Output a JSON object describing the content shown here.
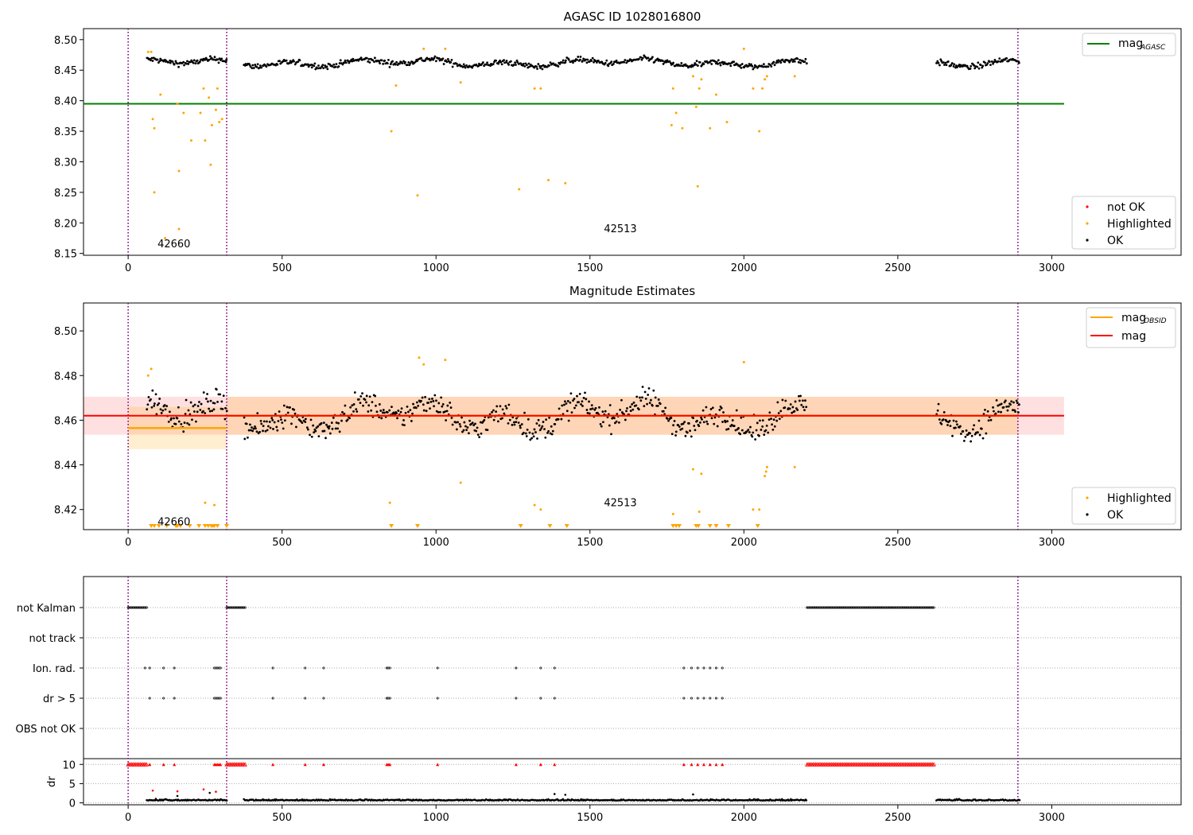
{
  "chart_data": [
    {
      "type": "scatter",
      "title": "AGASC ID 1028016800",
      "xlim": [
        -145,
        3420
      ],
      "ylim": [
        8.147,
        8.518
      ],
      "x_ticks": [
        "0",
        "500",
        "1000",
        "1500",
        "2000",
        "2500",
        "3000"
      ],
      "y_ticks": [
        "8.15",
        "8.20",
        "8.25",
        "8.30",
        "8.35",
        "8.40",
        "8.45",
        "8.50"
      ],
      "reference_line": {
        "label": "mag",
        "subscript": "AGASC",
        "value": 8.395,
        "x_range": [
          -145,
          3040
        ],
        "color": "#008000"
      },
      "obsid_boundaries": [
        0,
        320,
        2890
      ],
      "obsid_labels": [
        {
          "text": "42660",
          "x": 160,
          "y": 8.16
        },
        {
          "text": "42513",
          "x": 1610,
          "y": 8.185
        }
      ],
      "series": [
        {
          "name": "not OK",
          "color": "#ff0000",
          "values": []
        },
        {
          "name": "Highlighted",
          "color": "#ffa500",
          "points": [
            [
              65,
              8.48
            ],
            [
              75,
              8.48
            ],
            [
              80,
              8.37
            ],
            [
              85,
              8.355
            ],
            [
              85,
              8.25
            ],
            [
              105,
              8.41
            ],
            [
              120,
              8.175
            ],
            [
              160,
              8.395
            ],
            [
              165,
              8.285
            ],
            [
              165,
              8.19
            ],
            [
              180,
              8.38
            ],
            [
              205,
              8.335
            ],
            [
              235,
              8.38
            ],
            [
              245,
              8.42
            ],
            [
              250,
              8.335
            ],
            [
              262,
              8.405
            ],
            [
              268,
              8.295
            ],
            [
              272,
              8.36
            ],
            [
              285,
              8.385
            ],
            [
              290,
              8.42
            ],
            [
              296,
              8.365
            ],
            [
              305,
              8.37
            ],
            [
              855,
              8.35
            ],
            [
              870,
              8.425
            ],
            [
              940,
              8.245
            ],
            [
              960,
              8.485
            ],
            [
              1030,
              8.485
            ],
            [
              1080,
              8.43
            ],
            [
              1270,
              8.255
            ],
            [
              1320,
              8.42
            ],
            [
              1340,
              8.42
            ],
            [
              1365,
              8.27
            ],
            [
              1420,
              8.265
            ],
            [
              1765,
              8.36
            ],
            [
              1770,
              8.42
            ],
            [
              1780,
              8.38
            ],
            [
              1800,
              8.355
            ],
            [
              1835,
              8.44
            ],
            [
              1845,
              8.39
            ],
            [
              1850,
              8.26
            ],
            [
              1855,
              8.42
            ],
            [
              1862,
              8.435
            ],
            [
              1890,
              8.355
            ],
            [
              1910,
              8.41
            ],
            [
              1945,
              8.365
            ],
            [
              2000,
              8.485
            ],
            [
              2030,
              8.42
            ],
            [
              2050,
              8.35
            ],
            [
              2060,
              8.42
            ],
            [
              2068,
              8.435
            ],
            [
              2075,
              8.44
            ],
            [
              2165,
              8.44
            ]
          ]
        },
        {
          "name": "OK",
          "color": "#000000",
          "segments": [
            [
              60,
              320
            ],
            [
              375,
              2205
            ],
            [
              2625,
              2895
            ]
          ],
          "mean": 8.462,
          "spread": 0.008
        }
      ],
      "legend": [
        {
          "label": "mag",
          "subscript": "AGASC",
          "color": "#008000",
          "kind": "line"
        }
      ],
      "legend2": [
        {
          "label": "not OK",
          "color": "#ff0000"
        },
        {
          "label": "Highlighted",
          "color": "#ffa500"
        },
        {
          "label": "OK",
          "color": "#000000"
        }
      ]
    },
    {
      "type": "scatter",
      "title": "Magnitude Estimates",
      "xlim": [
        -145,
        3420
      ],
      "ylim": [
        8.411,
        8.5125
      ],
      "x_ticks": [
        "0",
        "500",
        "1000",
        "1500",
        "2000",
        "2500",
        "3000"
      ],
      "y_ticks": [
        "8.42",
        "8.44",
        "8.46",
        "8.48",
        "8.50"
      ],
      "obsid_boundaries": [
        0,
        320,
        2890
      ],
      "obsid_labels": [
        {
          "text": "42660",
          "x": 160,
          "y": 8.413
        },
        {
          "text": "42513",
          "x": 1610,
          "y": 8.4215
        }
      ],
      "mag_obsid": [
        {
          "x": [
            0,
            320
          ],
          "value": 8.4565,
          "band": [
            8.447,
            8.466
          ],
          "color": "#ffa500"
        },
        {
          "x": [
            320,
            2890
          ],
          "value": 8.462,
          "band": [
            8.4535,
            8.4705
          ],
          "color": "#ffa500"
        }
      ],
      "mag": {
        "value": 8.462,
        "band": [
          8.4535,
          8.4705
        ],
        "x_range": [
          -145,
          3040
        ],
        "color": "#ff0000"
      },
      "series": [
        {
          "name": "Highlighted",
          "color": "#ffa500",
          "points": [
            [
              65,
              8.48
            ],
            [
              75,
              8.483
            ],
            [
              850,
              8.423
            ],
            [
              945,
              8.488
            ],
            [
              960,
              8.485
            ],
            [
              1030,
              8.487
            ],
            [
              1080,
              8.432
            ],
            [
              1320,
              8.422
            ],
            [
              1340,
              8.42
            ],
            [
              1770,
              8.418
            ],
            [
              1835,
              8.438
            ],
            [
              1855,
              8.419
            ],
            [
              1862,
              8.436
            ],
            [
              2000,
              8.486
            ],
            [
              2030,
              8.42
            ],
            [
              2050,
              8.42
            ],
            [
              2068,
              8.435
            ],
            [
              2072,
              8.437
            ],
            [
              2075,
              8.439
            ],
            [
              2165,
              8.439
            ],
            [
              250,
              8.423
            ],
            [
              280,
              8.422
            ]
          ],
          "below_range_x": [
            75,
            85,
            100,
            125,
            155,
            160,
            170,
            200,
            230,
            250,
            260,
            270,
            275,
            280,
            290,
            320,
            855,
            940,
            1275,
            1370,
            1425,
            1770,
            1780,
            1790,
            1845,
            1852,
            1890,
            1910,
            1950,
            2045
          ]
        },
        {
          "name": "OK",
          "color": "#000000",
          "segments": [
            [
              60,
              320
            ],
            [
              375,
              2205
            ],
            [
              2625,
              2895
            ]
          ],
          "mean": 8.462,
          "spread": 0.009
        }
      ],
      "legend": [
        {
          "label": "mag",
          "subscript": "OBSID",
          "color": "#ffa500",
          "kind": "line"
        },
        {
          "label": "mag",
          "subscript": "",
          "color": "#ff0000",
          "kind": "line"
        }
      ],
      "legend2": [
        {
          "label": "Highlighted",
          "color": "#ffa500"
        },
        {
          "label": "OK",
          "color": "#000000"
        }
      ]
    },
    {
      "type": "scatter",
      "title": "",
      "xlim": [
        -145,
        3420
      ],
      "x_ticks": [
        "0",
        "500",
        "1000",
        "1500",
        "2000",
        "2500",
        "3000"
      ],
      "flag_rows": [
        "not Kalman",
        "not track",
        "Ion. rad.",
        "dr > 5",
        "OBS not OK"
      ],
      "flags": {
        "not Kalman": {
          "ranges": [
            [
              0,
              60
            ],
            [
              320,
              380
            ],
            [
              2205,
              2620
            ]
          ]
        },
        "not track": {
          "ranges": []
        },
        "Ion. rad.": {
          "x": [
            55,
            70,
            115,
            150,
            280,
            285,
            290,
            295,
            300,
            470,
            575,
            635,
            840,
            845,
            850,
            1005,
            1260,
            1340,
            1385,
            1805,
            1830,
            1850,
            1870,
            1890,
            1910,
            1930
          ]
        },
        "dr > 5": {
          "x": [
            70,
            115,
            150,
            280,
            285,
            290,
            295,
            300,
            470,
            575,
            635,
            840,
            845,
            850,
            1005,
            1260,
            1340,
            1385,
            1805,
            1830,
            1850,
            1870,
            1890,
            1910,
            1930
          ]
        },
        "OBS not OK": {
          "ranges": []
        }
      },
      "obsid_boundaries": [
        0,
        320,
        2890
      ],
      "dr_ylim": [
        -0.5,
        11.5
      ],
      "dr_ticks": [
        "0",
        "5",
        "10"
      ],
      "dr_label": "dr",
      "dr_clipped": {
        "value": 10,
        "ranges": [
          [
            0,
            60
          ],
          [
            320,
            380
          ],
          [
            2205,
            2620
          ]
        ],
        "x": [
          70,
          115,
          150,
          280,
          285,
          290,
          295,
          300,
          470,
          575,
          635,
          840,
          845,
          850,
          1005,
          1260,
          1340,
          1385,
          1805,
          1830,
          1850,
          1870,
          1890,
          1910,
          1930
        ]
      },
      "dr_spikes": [
        [
          80,
          3.2
        ],
        [
          160,
          3.0
        ],
        [
          245,
          3.5
        ],
        [
          265,
          2.6
        ],
        [
          285,
          2.9
        ],
        [
          1385,
          2.3
        ],
        [
          1420,
          2.1
        ],
        [
          1835,
          2.2
        ],
        [
          160,
          1.8
        ]
      ],
      "dr_segments": [
        [
          60,
          320
        ],
        [
          375,
          2205
        ],
        [
          2625,
          2895
        ]
      ]
    }
  ]
}
